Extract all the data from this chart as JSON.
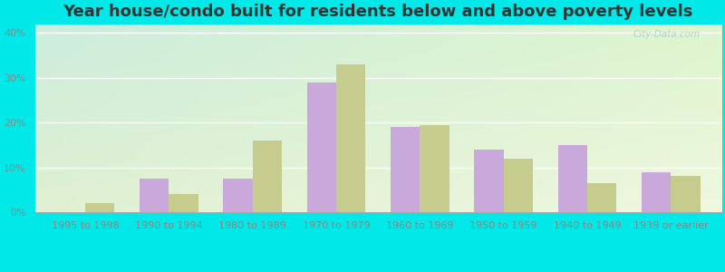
{
  "title": "Year house/condo built for residents below and above poverty levels",
  "categories": [
    "1995 to 1998",
    "1990 to 1994",
    "1980 to 1989",
    "1970 to 1979",
    "1960 to 1969",
    "1950 to 1959",
    "1940 to 1949",
    "1939 or earlier"
  ],
  "below_poverty": [
    0,
    7.5,
    7.5,
    29,
    19,
    14,
    15,
    9
  ],
  "above_poverty": [
    2,
    4,
    16,
    33,
    19.5,
    12,
    6.5,
    8
  ],
  "below_color": "#c9a8dc",
  "above_color": "#c5cc8e",
  "ylim": [
    0,
    42
  ],
  "yticks": [
    0,
    10,
    20,
    30,
    40
  ],
  "ytick_labels": [
    "0%",
    "10%",
    "20%",
    "30%",
    "40%"
  ],
  "outer_bg": "#00e8e8",
  "title_fontsize": 13,
  "tick_fontsize": 8,
  "legend_fontsize": 9,
  "bar_width": 0.35,
  "watermark_text": "City-Data.com"
}
